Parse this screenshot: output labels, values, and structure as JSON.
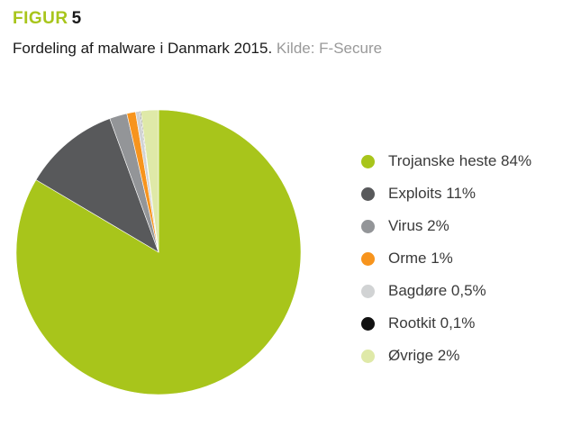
{
  "figure": {
    "label": "FIGUR",
    "number": "5"
  },
  "subtitle": {
    "title": "Fordeling af malware i Danmark 2015.",
    "source": "Kilde: F-Secure"
  },
  "chart_data": {
    "type": "pie",
    "title": "Fordeling af malware i Danmark 2015.",
    "categories": [
      "Trojanske heste",
      "Exploits",
      "Virus",
      "Orme",
      "Bagdøre",
      "Rootkit",
      "Øvrige"
    ],
    "values": [
      84,
      11,
      2,
      1,
      0.5,
      0.1,
      2
    ],
    "legend_labels": [
      "Trojanske heste 84%",
      "Exploits 11%",
      "Virus 2%",
      "Orme 1%",
      "Bagdøre 0,5%",
      "Rootkit 0,1%",
      "Øvrige 2%"
    ],
    "colors": [
      "#a8c51b",
      "#58595b",
      "#939598",
      "#f7941d",
      "#d1d3d4",
      "#111111",
      "#dfe9a8"
    ],
    "legend_position": "right",
    "start_angle": "top",
    "direction": "clockwise"
  }
}
